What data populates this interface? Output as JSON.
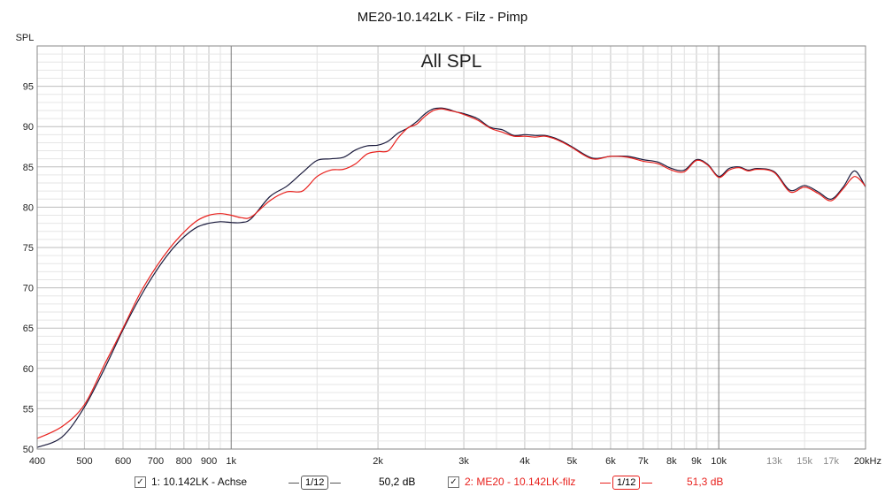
{
  "chart_data": {
    "type": "line",
    "title": "ME20-10.142LK - Filz - Pimp",
    "inner_title": "All SPL",
    "ylabel": "SPL",
    "xscale": "log",
    "xlim": [
      400,
      20000
    ],
    "ylim": [
      50,
      100
    ],
    "grid": true,
    "y_ticks": [
      50,
      55,
      60,
      65,
      70,
      75,
      80,
      85,
      90,
      95
    ],
    "x_tick_labels": [
      {
        "value": 400,
        "label": "400"
      },
      {
        "value": 500,
        "label": "500"
      },
      {
        "value": 600,
        "label": "600"
      },
      {
        "value": 700,
        "label": "700"
      },
      {
        "value": 800,
        "label": "800"
      },
      {
        "value": 900,
        "label": "900"
      },
      {
        "value": 1000,
        "label": "1k"
      },
      {
        "value": 2000,
        "label": "2k"
      },
      {
        "value": 3000,
        "label": "3k"
      },
      {
        "value": 4000,
        "label": "4k"
      },
      {
        "value": 5000,
        "label": "5k"
      },
      {
        "value": 6000,
        "label": "6k"
      },
      {
        "value": 7000,
        "label": "7k"
      },
      {
        "value": 8000,
        "label": "8k"
      },
      {
        "value": 9000,
        "label": "9k"
      },
      {
        "value": 10000,
        "label": "10k"
      },
      {
        "value": 13000,
        "label": "13k",
        "muted": true
      },
      {
        "value": 15000,
        "label": "15k",
        "muted": true
      },
      {
        "value": 17000,
        "label": "17k",
        "muted": true
      },
      {
        "value": 20000,
        "label": "20kHz"
      }
    ],
    "series": [
      {
        "name": "1: 10.142LK - Achse",
        "color": "#1a1a3c",
        "x": [
          400,
          450,
          500,
          550,
          600,
          650,
          700,
          750,
          800,
          850,
          900,
          950,
          1000,
          1050,
          1100,
          1200,
          1300,
          1400,
          1500,
          1600,
          1700,
          1800,
          1900,
          2000,
          2100,
          2200,
          2300,
          2400,
          2500,
          2600,
          2700,
          2800,
          2900,
          3000,
          3200,
          3400,
          3600,
          3800,
          4000,
          4200,
          4400,
          4600,
          4800,
          5000,
          5500,
          6000,
          6500,
          7000,
          7500,
          8000,
          8500,
          9000,
          9500,
          10000,
          10500,
          11000,
          11500,
          12000,
          13000,
          14000,
          15000,
          16000,
          17000,
          18000,
          19000,
          20000
        ],
        "values": [
          50.2,
          51.5,
          55.2,
          60.0,
          64.8,
          68.8,
          72.0,
          74.5,
          76.3,
          77.5,
          78.0,
          78.2,
          78.1,
          78.1,
          78.6,
          81.3,
          82.6,
          84.3,
          85.8,
          86.0,
          86.2,
          87.1,
          87.6,
          87.7,
          88.2,
          89.2,
          89.8,
          90.6,
          91.6,
          92.2,
          92.3,
          92.1,
          91.8,
          91.6,
          91.0,
          89.9,
          89.6,
          88.9,
          89.0,
          88.9,
          88.9,
          88.6,
          88.1,
          87.5,
          86.1,
          86.3,
          86.3,
          85.9,
          85.6,
          84.8,
          84.6,
          85.9,
          85.3,
          83.8,
          84.8,
          85.0,
          84.6,
          84.8,
          84.4,
          82.1,
          82.7,
          81.9,
          81.0,
          82.5,
          84.5,
          82.5
        ],
        "smoothing": "1/12",
        "level": "50,2 dB"
      },
      {
        "name": "2: ME20 - 10.142LK-filz",
        "color": "#e8201c",
        "x": [
          400,
          450,
          500,
          550,
          600,
          650,
          700,
          750,
          800,
          850,
          900,
          950,
          1000,
          1050,
          1100,
          1200,
          1300,
          1400,
          1500,
          1600,
          1700,
          1800,
          1900,
          2000,
          2100,
          2200,
          2300,
          2400,
          2500,
          2600,
          2700,
          2800,
          2900,
          3000,
          3200,
          3400,
          3600,
          3800,
          4000,
          4200,
          4400,
          4600,
          4800,
          5000,
          5500,
          6000,
          6500,
          7000,
          7500,
          8000,
          8500,
          9000,
          9500,
          10000,
          10500,
          11000,
          11500,
          12000,
          13000,
          14000,
          15000,
          16000,
          17000,
          18000,
          19000,
          20000
        ],
        "values": [
          51.3,
          52.8,
          55.5,
          60.5,
          65.0,
          69.3,
          72.5,
          75.0,
          76.9,
          78.3,
          79.0,
          79.2,
          79.0,
          78.7,
          78.8,
          80.8,
          81.9,
          82.0,
          83.8,
          84.6,
          84.7,
          85.4,
          86.6,
          86.9,
          87.0,
          88.6,
          89.8,
          90.3,
          91.3,
          92.0,
          92.2,
          92.0,
          91.8,
          91.5,
          90.8,
          89.8,
          89.3,
          88.8,
          88.8,
          88.7,
          88.8,
          88.5,
          88.0,
          87.4,
          86.0,
          86.3,
          86.2,
          85.7,
          85.4,
          84.6,
          84.4,
          85.8,
          85.2,
          83.7,
          84.6,
          84.9,
          84.5,
          84.7,
          84.3,
          81.9,
          82.5,
          81.7,
          80.8,
          82.3,
          83.8,
          82.6
        ],
        "smoothing": "1/12",
        "level": "51,3 dB"
      }
    ],
    "legend_placement": "bottom"
  },
  "legend": {
    "checked_glyph": "✓",
    "items": [
      {
        "label": "1: 10.142LK - Achse",
        "smoothing": "1/12",
        "level": "50,2 dB",
        "color": "#1a1a3c"
      },
      {
        "label": "2: ME20 - 10.142LK-filz",
        "smoothing": "1/12",
        "level": "51,3 dB",
        "color": "#e8201c"
      }
    ]
  }
}
